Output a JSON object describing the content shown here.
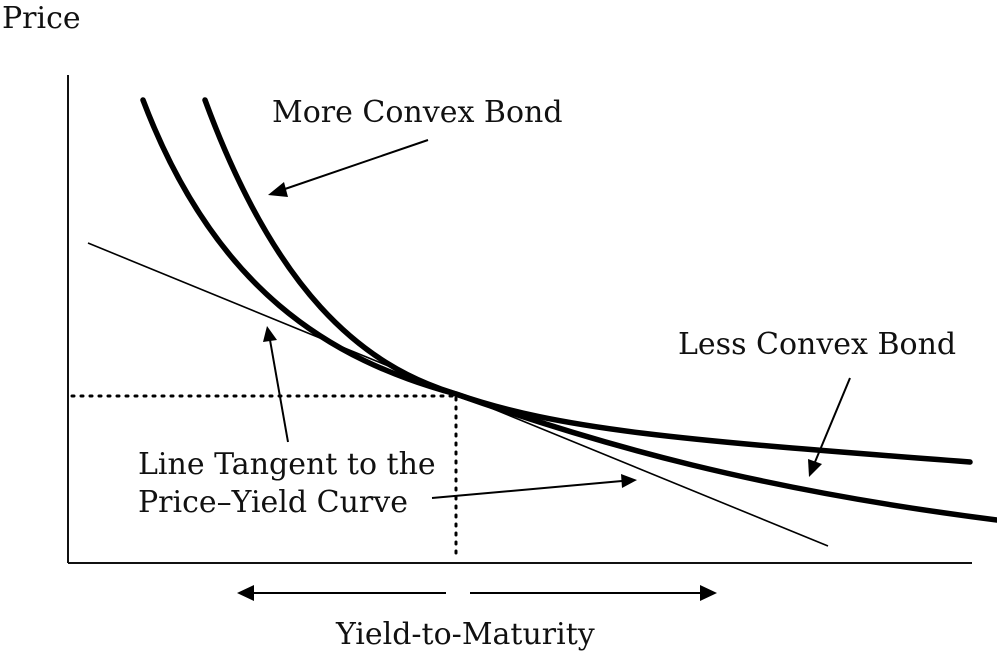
{
  "labels": {
    "y_axis": "Price",
    "x_axis": "Yield-to-Maturity",
    "more_convex": "More Convex Bond",
    "less_convex": "Less Convex Bond",
    "tangent_line_1": "Line Tangent to the",
    "tangent_line_2": "Price–Yield Curve"
  }
}
